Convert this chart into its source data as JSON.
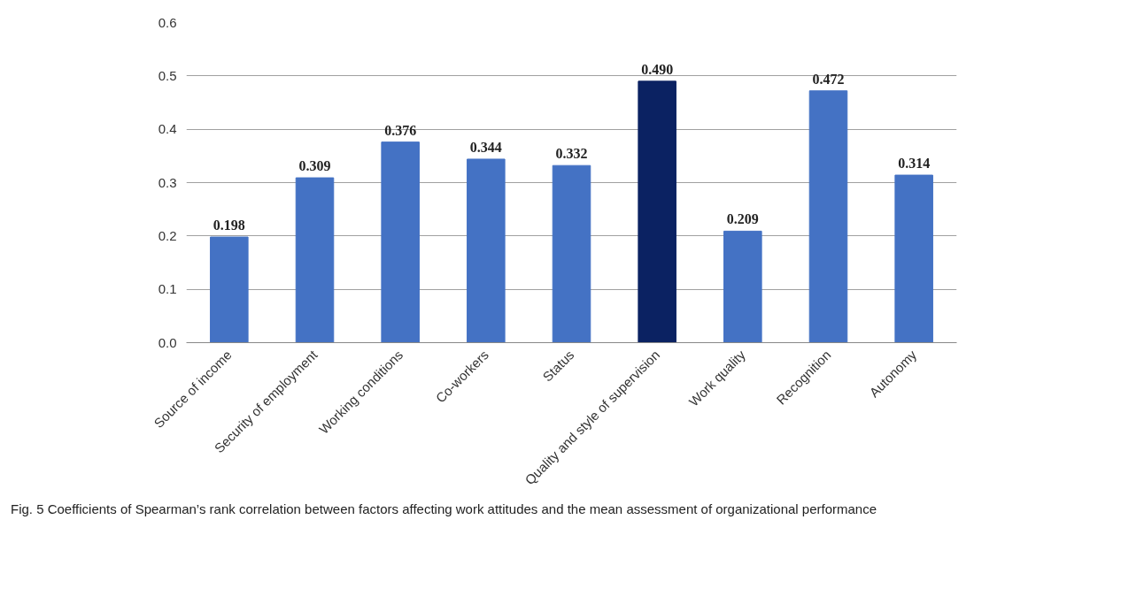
{
  "chart_data": {
    "type": "bar",
    "categories": [
      "Source of income",
      "Security of employment",
      "Working conditions",
      "Co-workers",
      "Status",
      "Quality and style of supervision",
      "Work quality",
      "Recognition",
      "Autonomy"
    ],
    "values": [
      0.198,
      0.309,
      0.376,
      0.344,
      0.332,
      0.49,
      0.209,
      0.472,
      0.314
    ],
    "value_labels": [
      "0.198",
      "0.309",
      "0.376",
      "0.344",
      "0.332",
      "0.490",
      "0.209",
      "0.472",
      "0.314"
    ],
    "colors": [
      "#4472c4",
      "#4472c4",
      "#4472c4",
      "#4472c4",
      "#4472c4",
      "#0b2262",
      "#4472c4",
      "#4472c4",
      "#4472c4"
    ],
    "ylim": [
      0,
      0.6
    ],
    "yticks": [
      {
        "value": 0,
        "label": "0.0"
      },
      {
        "value": 0.1,
        "label": "0.1"
      },
      {
        "value": 0.2,
        "label": "0.2"
      },
      {
        "value": 0.3,
        "label": "0.3"
      },
      {
        "value": 0.4,
        "label": "0.4"
      },
      {
        "value": 0.5,
        "label": "0.5"
      },
      {
        "value": 0.6,
        "label": "0.6"
      }
    ],
    "grid": "y",
    "annotations": [
      "Fig. 5 Coefficients of Spearman’s rank correlation between factors affecting work attitudes and the mean assessment of organizational performance"
    ]
  }
}
